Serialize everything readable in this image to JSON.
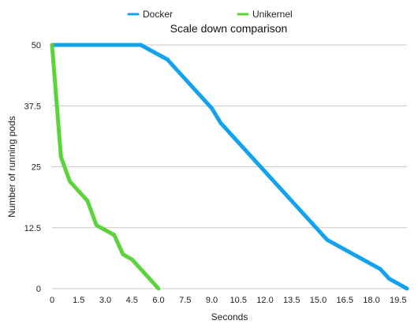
{
  "chart_data": {
    "type": "line",
    "title": "Scale down comparison",
    "xlabel": "Seconds",
    "ylabel": "Number of running pods",
    "xlim": [
      0,
      20
    ],
    "ylim": [
      0,
      50
    ],
    "x_ticks": [
      0,
      1.5,
      3.0,
      4.5,
      6.0,
      7.5,
      9.0,
      10.5,
      12.0,
      13.5,
      15.0,
      16.5,
      18.0,
      19.5
    ],
    "x_tick_labels": [
      "0",
      "1.5",
      "3.0",
      "4.5",
      "6.0",
      "7.5",
      "9.0",
      "10.5",
      "12.0",
      "13.5",
      "15.0",
      "16.5",
      "18.0",
      "19.5"
    ],
    "y_ticks": [
      0,
      12.5,
      25,
      37.5,
      50
    ],
    "y_tick_labels": [
      "0",
      "12.5",
      "25",
      "37.5",
      "50"
    ],
    "grid": "horizontal",
    "legend_position": "top",
    "series": [
      {
        "name": "Docker",
        "color": "#13a3ee",
        "points": [
          [
            0,
            50
          ],
          [
            5.0,
            50
          ],
          [
            6.5,
            47
          ],
          [
            9.0,
            37
          ],
          [
            9.5,
            34
          ],
          [
            15.5,
            10
          ],
          [
            18.5,
            4
          ],
          [
            19.0,
            2
          ],
          [
            20.0,
            0
          ]
        ]
      },
      {
        "name": "Unikernel",
        "color": "#5cd33c",
        "points": [
          [
            0,
            50
          ],
          [
            0.5,
            27
          ],
          [
            1.0,
            22
          ],
          [
            2.0,
            18
          ],
          [
            2.5,
            13
          ],
          [
            3.5,
            11
          ],
          [
            4.0,
            7
          ],
          [
            4.5,
            6
          ],
          [
            6.0,
            0
          ]
        ]
      }
    ]
  }
}
